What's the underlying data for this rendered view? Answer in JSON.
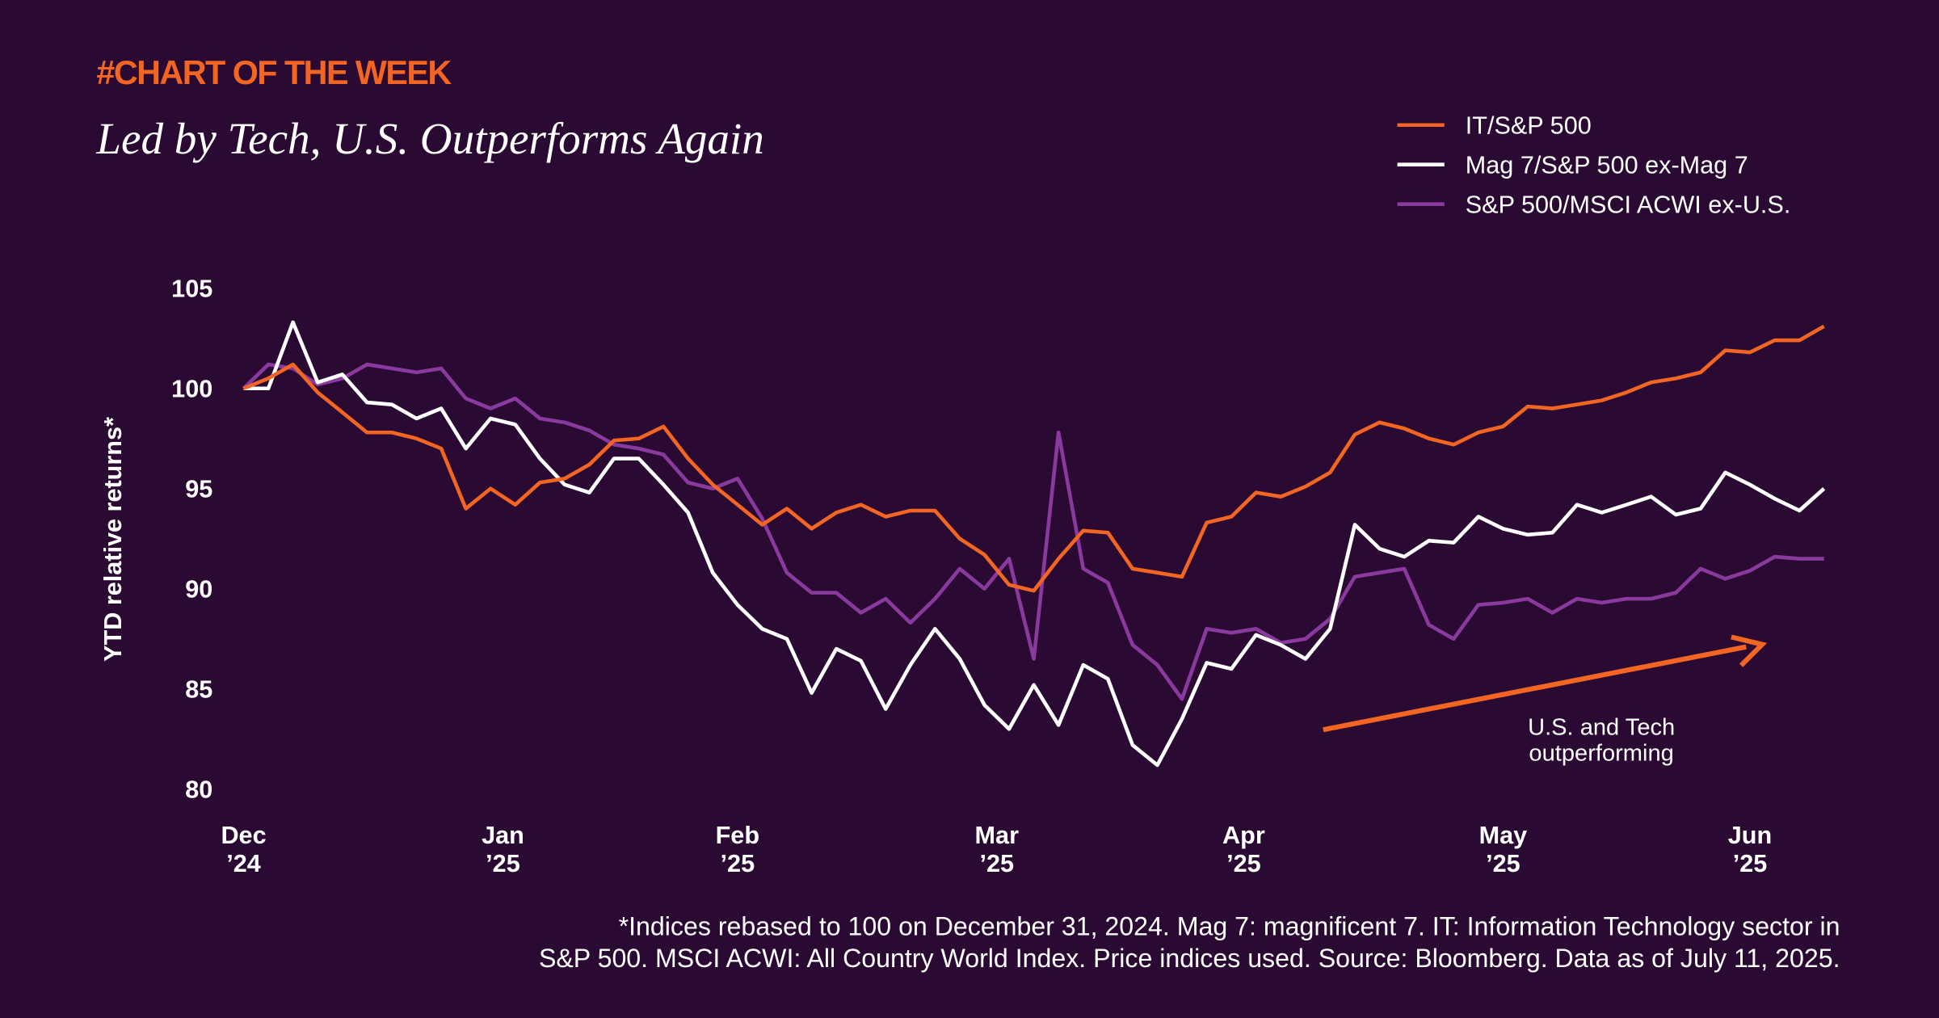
{
  "chart_data": {
    "type": "line",
    "kicker": "#CHART OF THE WEEK",
    "title": "Led by Tech, U.S. Outperforms Again",
    "ylabel": "YTD relative returns*",
    "annotation": [
      "U.S. and Tech",
      "outperforming"
    ],
    "note": [
      "*Indices rebased to 100 on December 31, 2024. Mag 7: magnificent 7. IT: Information Technology sector in",
      "S&P 500. MSCI ACWI: All Country World Index. Price indices used. Source: Bloomberg. Data as of July 11, 2025."
    ],
    "x": [
      0,
      2,
      4,
      6,
      8,
      10,
      12,
      14,
      16,
      18,
      20,
      22,
      24,
      26,
      28,
      30,
      32,
      34,
      36,
      38,
      40,
      42,
      44,
      46,
      48,
      50,
      52,
      54,
      56,
      58,
      60,
      62,
      64,
      66,
      68,
      70,
      72,
      74,
      76,
      78,
      80,
      82,
      84,
      86,
      88,
      90,
      92,
      94,
      96,
      98,
      100,
      102,
      104,
      106,
      108,
      110,
      112,
      114,
      116,
      118,
      120,
      122,
      124,
      126,
      128
    ],
    "xlim": [
      0,
      130
    ],
    "xticks": [
      {
        "value": 0,
        "label": "Dec ’24"
      },
      {
        "value": 21,
        "label": "Jan ’25"
      },
      {
        "value": 40,
        "label": "Feb ’25"
      },
      {
        "value": 61,
        "label": "Mar ’25"
      },
      {
        "value": 81,
        "label": "Apr ’25"
      },
      {
        "value": 102,
        "label": "May ’25"
      },
      {
        "value": 122,
        "label": "Jun ’25"
      }
    ],
    "ylim": [
      80,
      105
    ],
    "yticks": [
      80,
      85,
      90,
      95,
      100,
      105
    ],
    "series": [
      {
        "name": "IT/S&P 500",
        "color": "#f26522",
        "values": [
          100,
          100.5,
          101.2,
          99.8,
          98.8,
          97.8,
          97.8,
          97.5,
          97,
          94.0,
          95,
          94.2,
          95.3,
          95.5,
          96.2,
          97.4,
          97.5,
          98.1,
          96.5,
          95.2,
          94.2,
          93.2,
          94.0,
          93,
          93.8,
          94.2,
          93.6,
          93.9,
          93.9,
          92.5,
          91.7,
          90.2,
          89.9,
          91.5,
          92.9,
          92.8,
          91.0,
          90.8,
          90.6,
          93.3,
          93.6,
          94.8,
          94.6,
          95.1,
          95.8,
          97.7,
          98.3,
          98.0,
          97.5,
          97.2,
          97.8,
          98.1,
          99.1,
          99.0,
          99.2,
          99.4,
          99.8,
          100.3,
          100.5,
          100.8,
          101.9,
          101.8,
          102.4,
          102.4,
          103.1
        ]
      },
      {
        "name": "Mag 7/S&P 500 ex-Mag 7",
        "color": "#ffffff",
        "values": [
          100,
          100.0,
          103.3,
          100.3,
          100.7,
          99.3,
          99.2,
          98.5,
          99.0,
          97.0,
          98.5,
          98.2,
          96.5,
          95.2,
          94.8,
          96.5,
          96.5,
          95.2,
          93.8,
          90.8,
          89.2,
          88.0,
          87.5,
          84.8,
          87.0,
          86.4,
          84.0,
          86.2,
          88.0,
          86.5,
          84.2,
          83.0,
          85.2,
          83.2,
          86.2,
          85.5,
          82.2,
          81.2,
          83.5,
          86.3,
          86.0,
          87.7,
          87.2,
          86.5,
          88.0,
          93.2,
          92.0,
          91.6,
          92.4,
          92.3,
          93.6,
          93.0,
          92.7,
          92.8,
          94.2,
          93.8,
          94.2,
          94.6,
          93.7,
          94.0,
          95.8,
          95.2,
          94.5,
          93.9,
          95.0
        ]
      },
      {
        "name": "S&P 500/MSCI ACWI ex-U.S.",
        "color": "#8a3a9e",
        "values": [
          100,
          101.2,
          101.0,
          100.2,
          100.5,
          101.2,
          101.0,
          100.8,
          101.0,
          99.5,
          99.0,
          99.5,
          98.5,
          98.3,
          97.9,
          97.2,
          97.0,
          96.7,
          95.3,
          95.0,
          95.5,
          93.5,
          90.8,
          89.8,
          89.8,
          88.8,
          89.5,
          88.3,
          89.5,
          91.0,
          90.0,
          91.5,
          86.5,
          97.8,
          91.0,
          90.3,
          87.2,
          86.2,
          84.5,
          88.0,
          87.8,
          88.0,
          87.3,
          87.5,
          88.5,
          90.6,
          90.8,
          91.0,
          88.2,
          87.5,
          89.2,
          89.3,
          89.5,
          88.8,
          89.5,
          89.3,
          89.5,
          89.5,
          89.8,
          91.0,
          90.5,
          90.9,
          91.6,
          91.5,
          91.5
        ]
      }
    ]
  }
}
